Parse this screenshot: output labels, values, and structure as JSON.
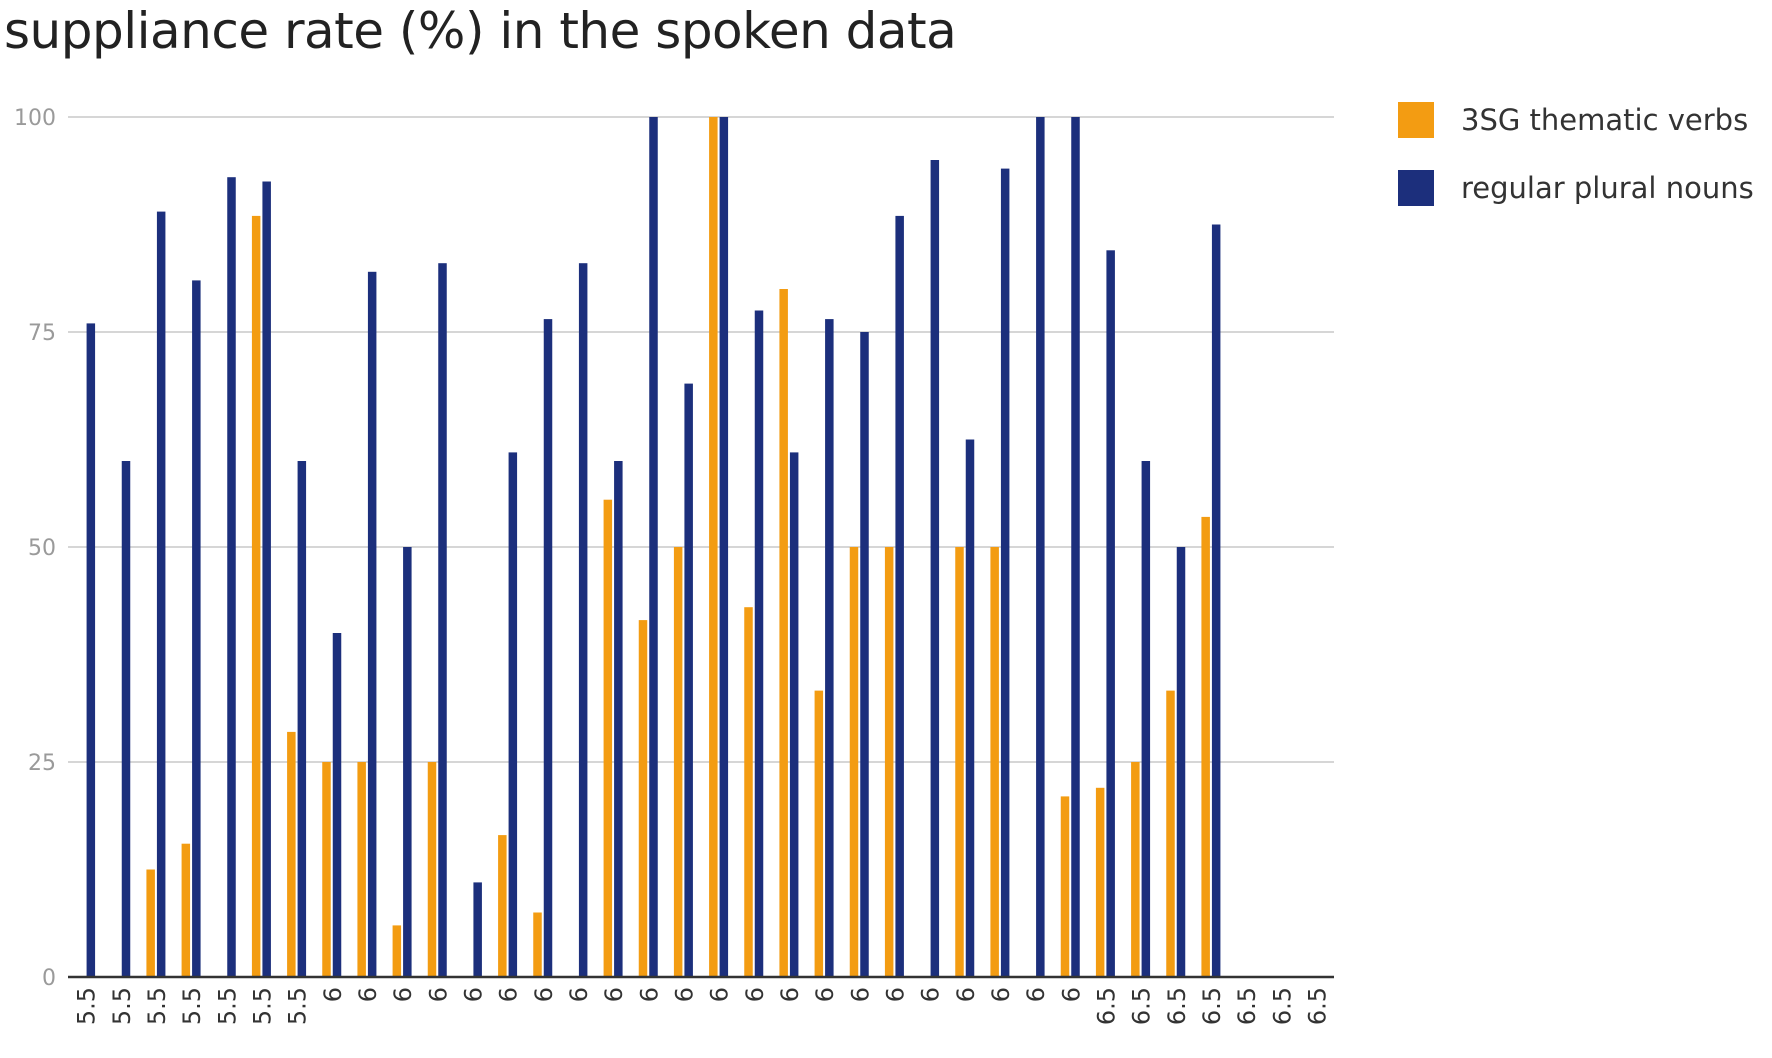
{
  "chart_data": {
    "type": "bar",
    "title": "suppliance rate (%) in the spoken data",
    "xlabel": "",
    "ylabel": "",
    "ylim": [
      0,
      100
    ],
    "yticks": [
      0,
      25,
      50,
      75,
      100
    ],
    "grid": true,
    "legend_position": "right",
    "categories": [
      "5.5",
      "5.5",
      "5.5",
      "5.5",
      "5.5",
      "5.5",
      "5.5",
      "6",
      "6",
      "6",
      "6",
      "6",
      "6",
      "6",
      "6",
      "6",
      "6",
      "6",
      "6",
      "6",
      "6",
      "6",
      "6",
      "6",
      "6",
      "6",
      "6",
      "6",
      "6",
      "6.5",
      "6.5",
      "6.5",
      "6.5",
      "6.5",
      "6.5",
      "6.5"
    ],
    "series": [
      {
        "name": "3SG thematic verbs",
        "color": "#f39c12",
        "values": [
          0,
          0,
          12.5,
          15.5,
          0,
          88.5,
          28.5,
          25,
          25,
          6,
          25,
          0,
          16.5,
          7.5,
          0,
          55.5,
          41.5,
          50,
          100,
          43,
          80,
          33.3,
          50,
          50,
          0,
          50,
          50,
          0,
          21,
          22,
          25,
          33.3,
          53.5,
          0,
          0,
          0
        ]
      },
      {
        "name": "regular plural nouns",
        "color": "#1c2f7c",
        "values": [
          76,
          60,
          89,
          81,
          93,
          92.5,
          60,
          40,
          82,
          50,
          83,
          11,
          61,
          76.5,
          83,
          60,
          100,
          69,
          100,
          77.5,
          61,
          76.5,
          75,
          88.5,
          95,
          62.5,
          94,
          100,
          100,
          84.5,
          60,
          50,
          87.5,
          0,
          0,
          0
        ]
      }
    ]
  }
}
